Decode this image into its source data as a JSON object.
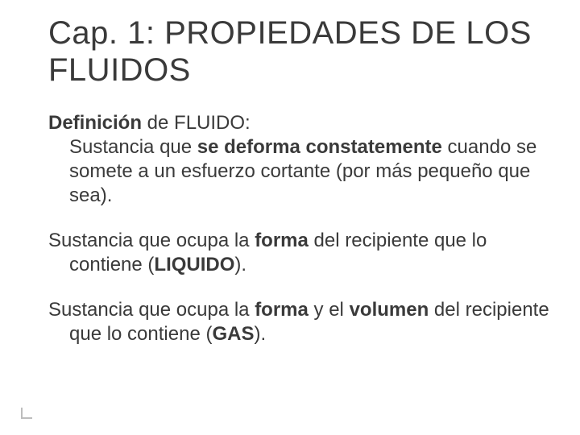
{
  "slide": {
    "background_color": "#ffffff",
    "text_color": "#3a3a3a",
    "font_family": "Verdana",
    "title": {
      "text": "Cap. 1: PROPIEDADES DE LOS FLUIDOS",
      "fontsize_pt": 40,
      "weight": "400"
    },
    "paragraphs": [
      {
        "runs": [
          {
            "text": "Definición",
            "bold": true
          },
          {
            "text": " de FLUIDO:",
            "bold": false
          },
          {
            "text": "\nSustancia que ",
            "bold": false
          },
          {
            "text": "se deforma constatemente",
            "bold": true
          },
          {
            "text": " cuando se somete a un esfuerzo cortante (por más pequeño que sea).",
            "bold": false
          }
        ],
        "fontsize_pt": 24
      },
      {
        "runs": [
          {
            "text": "Sustancia que ocupa la ",
            "bold": false
          },
          {
            "text": "forma",
            "bold": true
          },
          {
            "text": " del recipiente que lo contiene (",
            "bold": false
          },
          {
            "text": "LIQUIDO",
            "bold": true
          },
          {
            "text": ").",
            "bold": false
          }
        ],
        "fontsize_pt": 24
      },
      {
        "runs": [
          {
            "text": "Sustancia que ocupa la ",
            "bold": false
          },
          {
            "text": "forma",
            "bold": true
          },
          {
            "text": " y el ",
            "bold": false
          },
          {
            "text": "volumen",
            "bold": true
          },
          {
            "text": " del recipiente que lo contiene (",
            "bold": false
          },
          {
            "text": "GAS",
            "bold": true
          },
          {
            "text": ").",
            "bold": false
          }
        ],
        "fontsize_pt": 24
      }
    ],
    "notch_color": "#bdbdbd"
  }
}
